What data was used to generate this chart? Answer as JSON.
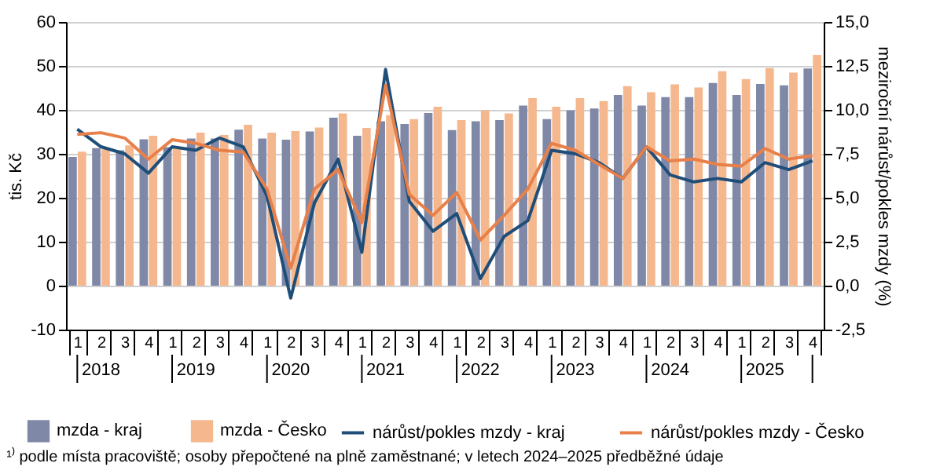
{
  "chart_data": {
    "type": "bar",
    "ylabel": "tis. Kč",
    "y2label": "meziroční nárůst/pokles mzdy (%)",
    "categories": [
      "1",
      "2",
      "3",
      "4",
      "1",
      "2",
      "3",
      "4",
      "1",
      "2",
      "3",
      "4",
      "1",
      "2",
      "3",
      "4",
      "1",
      "2",
      "3",
      "4",
      "1",
      "2",
      "3",
      "4",
      "1",
      "2",
      "3",
      "4",
      "1",
      "2",
      "3",
      "4"
    ],
    "series": [
      {
        "name": "mzda - kraj",
        "color": "#8088a8",
        "values": [
          29.3,
          31.3,
          30.8,
          33.3,
          31.5,
          33.5,
          33.5,
          35.5,
          33.5,
          33.2,
          35.1,
          38.2,
          34.1,
          37.4,
          36.8,
          39.3,
          35.4,
          37.4,
          37.7,
          41.0,
          37.9,
          39.9,
          40.3,
          43.4,
          41.0,
          42.9,
          42.9,
          46.1,
          43.4,
          45.9,
          45.6,
          49.4
        ]
      },
      {
        "name": "mzda - Česko",
        "color": "#f5b88e",
        "values": [
          30.5,
          31.1,
          31.9,
          34.1,
          31.3,
          34.8,
          34.3,
          36.6,
          34.8,
          35.2,
          36.0,
          39.2,
          35.9,
          38.8,
          37.9,
          40.7,
          37.7,
          39.9,
          39.2,
          42.7,
          40.7,
          42.7,
          42.0,
          45.4,
          44.0,
          45.8,
          45.1,
          48.8,
          47.0,
          49.5,
          48.5,
          52.5
        ]
      },
      {
        "name": "nárůst/pokles mzdy - kraj",
        "type": "line",
        "axis": "y2",
        "color": "#1f4e79",
        "values": [
          8.9,
          7.9,
          7.5,
          6.4,
          7.9,
          7.7,
          8.4,
          7.9,
          5.1,
          -0.7,
          4.7,
          7.2,
          1.9,
          12.3,
          4.8,
          3.1,
          4.1,
          0.4,
          2.8,
          3.7,
          7.7,
          7.5,
          7.0,
          6.1,
          7.9,
          6.3,
          5.9,
          6.1,
          5.9,
          7.0,
          6.6,
          7.1
        ]
      },
      {
        "name": "nárůst/pokles mzdy - Česko",
        "type": "line",
        "axis": "y2",
        "color": "#e8804a",
        "values": [
          8.6,
          8.7,
          8.4,
          7.2,
          8.3,
          8.1,
          7.7,
          7.6,
          5.5,
          1.0,
          5.5,
          6.6,
          3.6,
          11.4,
          5.2,
          4.0,
          5.3,
          2.6,
          4.0,
          5.5,
          8.1,
          7.7,
          6.9,
          6.1,
          7.9,
          7.1,
          7.2,
          6.9,
          6.8,
          7.8,
          7.2,
          7.4
        ]
      }
    ],
    "ylim": [
      -10,
      60
    ],
    "yticks": [
      -10,
      0,
      10,
      20,
      30,
      40,
      50,
      60
    ],
    "y2lim": [
      -2.5,
      15
    ],
    "y2ticks": [
      {
        "value": -2.5,
        "label": "-2,5"
      },
      {
        "value": 0,
        "label": "0,0"
      },
      {
        "value": 2.5,
        "label": "2,5"
      },
      {
        "value": 5,
        "label": "5,0"
      },
      {
        "value": 7.5,
        "label": "7,5"
      },
      {
        "value": 10,
        "label": "10,0"
      },
      {
        "value": 12.5,
        "label": "12,5"
      },
      {
        "value": 15,
        "label": "15,0"
      }
    ],
    "grid": "y",
    "legend": "bottom",
    "annotations": [
      "2018",
      "2019",
      "2020",
      "2021",
      "2022",
      "2023",
      "2024",
      "2025",
      "¹⁾ podle místa pracoviště; osoby přepočtené na plně zaměstnané; v letech 2024–2025 předběžné údaje"
    ]
  }
}
